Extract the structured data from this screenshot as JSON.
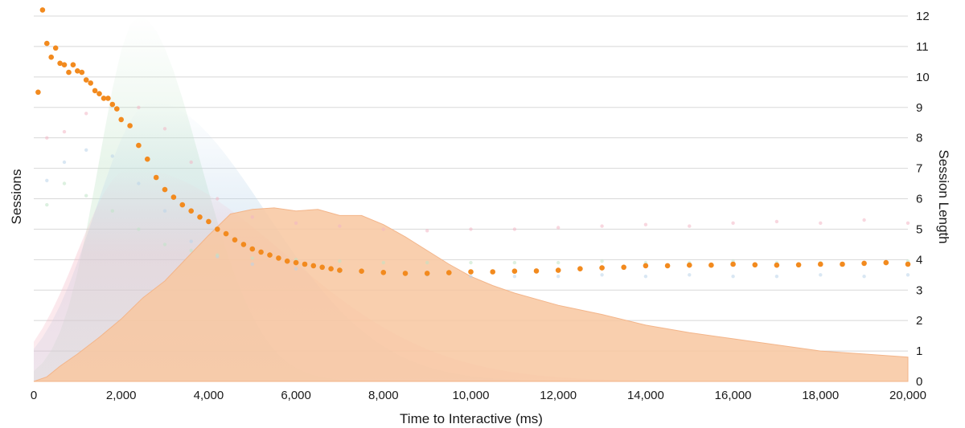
{
  "chart_data": {
    "type": "scatter",
    "title": "",
    "xlabel": "Time to Interactive (ms)",
    "ylabel_left": "Sessions",
    "ylabel_right": "Session Length",
    "xlim": [
      0,
      20000
    ],
    "ylim_right": [
      0,
      12
    ],
    "x_ticks": [
      "0",
      "2,000",
      "4,000",
      "6,000",
      "8,000",
      "10,000",
      "12,000",
      "14,000",
      "16,000",
      "18,000",
      "20,000"
    ],
    "y_ticks_right": [
      "0",
      "1",
      "2",
      "3",
      "4",
      "5",
      "6",
      "7",
      "8",
      "9",
      "10",
      "11",
      "12"
    ],
    "grid": true,
    "colors": {
      "highlight_points": "#f28a1e",
      "highlight_area_fill": "#f8c7a0",
      "highlight_area_stroke": "#f3b58a",
      "faded_pink": "#f3b6c4",
      "faded_blue": "#b9d4ea",
      "faded_green": "#bfe3c6",
      "grid": "#d8d8d8"
    },
    "highlighted_series": {
      "session_length_points": {
        "x": [
          100,
          200,
          300,
          400,
          500,
          600,
          700,
          800,
          900,
          1000,
          1100,
          1200,
          1300,
          1400,
          1500,
          1600,
          1700,
          1800,
          1900,
          2000,
          2200,
          2400,
          2600,
          2800,
          3000,
          3200,
          3400,
          3600,
          3800,
          4000,
          4200,
          4400,
          4600,
          4800,
          5000,
          5200,
          5400,
          5600,
          5800,
          6000,
          6200,
          6400,
          6600,
          6800,
          7000,
          7500,
          8000,
          8500,
          9000,
          9500,
          10000,
          10500,
          11000,
          11500,
          12000,
          12500,
          13000,
          13500,
          14000,
          14500,
          15000,
          15500,
          16000,
          16500,
          17000,
          17500,
          18000,
          18500,
          19000,
          19500,
          20000
        ],
        "y": [
          9.5,
          12.2,
          11.1,
          10.65,
          10.95,
          10.45,
          10.4,
          10.15,
          10.4,
          10.2,
          10.15,
          9.9,
          9.8,
          9.55,
          9.45,
          9.3,
          9.3,
          9.1,
          8.95,
          8.6,
          8.4,
          7.75,
          7.3,
          6.7,
          6.3,
          6.05,
          5.8,
          5.6,
          5.4,
          5.25,
          5.0,
          4.85,
          4.65,
          4.5,
          4.35,
          4.25,
          4.15,
          4.05,
          3.95,
          3.9,
          3.85,
          3.8,
          3.75,
          3.7,
          3.65,
          3.62,
          3.58,
          3.55,
          3.55,
          3.57,
          3.6,
          3.6,
          3.62,
          3.63,
          3.65,
          3.7,
          3.73,
          3.75,
          3.8,
          3.8,
          3.82,
          3.82,
          3.85,
          3.83,
          3.82,
          3.83,
          3.85,
          3.85,
          3.88,
          3.9,
          3.85
        ]
      },
      "session_count_area": {
        "x": [
          0,
          300,
          600,
          1000,
          1500,
          2000,
          2500,
          3000,
          3500,
          4000,
          4500,
          5000,
          5500,
          6000,
          6500,
          7000,
          7500,
          8000,
          8500,
          9000,
          9500,
          10000,
          10500,
          11000,
          12000,
          13000,
          14000,
          15000,
          16000,
          17000,
          18000,
          19000,
          20000
        ],
        "y": [
          0.0,
          0.15,
          0.5,
          0.9,
          1.45,
          2.05,
          2.75,
          3.3,
          4.05,
          4.8,
          5.5,
          5.65,
          5.7,
          5.6,
          5.65,
          5.45,
          5.45,
          5.15,
          4.75,
          4.3,
          3.85,
          3.45,
          3.15,
          2.9,
          2.5,
          2.2,
          1.85,
          1.6,
          1.4,
          1.2,
          1.0,
          0.9,
          0.8
        ]
      }
    },
    "faded_series": [
      {
        "color": "pink",
        "x": [
          300,
          700,
          1200,
          1800,
          2400,
          3000,
          3600,
          4200,
          5000,
          6000,
          7000,
          8000,
          9000,
          10000,
          11000,
          12000,
          13000,
          14000,
          15000,
          16000,
          17000,
          18000,
          19000,
          20000
        ],
        "y": [
          8.0,
          8.2,
          8.8,
          9.1,
          9.0,
          8.3,
          7.2,
          6.0,
          5.4,
          5.2,
          5.1,
          5.0,
          4.95,
          5.0,
          5.0,
          5.05,
          5.1,
          5.15,
          5.1,
          5.2,
          5.25,
          5.2,
          5.3,
          5.2
        ]
      },
      {
        "color": "blue",
        "x": [
          300,
          700,
          1200,
          1800,
          2400,
          3000,
          3600,
          4200,
          5000,
          6000,
          7000,
          8000,
          9000,
          10000,
          11000,
          12000,
          13000,
          14000,
          15000,
          16000,
          17000,
          18000,
          19000,
          20000
        ],
        "y": [
          6.6,
          7.2,
          7.6,
          7.4,
          6.5,
          5.6,
          4.6,
          4.1,
          3.85,
          3.7,
          3.6,
          3.55,
          3.5,
          3.45,
          3.45,
          3.45,
          3.5,
          3.45,
          3.5,
          3.45,
          3.45,
          3.5,
          3.45,
          3.5
        ]
      },
      {
        "color": "green",
        "x": [
          300,
          700,
          1200,
          1800,
          2400,
          3000,
          3600,
          4200,
          5000,
          6000,
          7000,
          8000,
          9000,
          10000,
          11000,
          12000,
          13000,
          14000,
          15000,
          16000,
          17000,
          18000,
          19000,
          20000
        ],
        "y": [
          5.8,
          6.5,
          6.1,
          5.6,
          5.0,
          4.5,
          4.3,
          4.15,
          4.05,
          4.0,
          3.95,
          3.9,
          3.9,
          3.9,
          3.9,
          3.9,
          3.95,
          3.9,
          3.9,
          3.95,
          3.9,
          3.9,
          3.9,
          3.95
        ]
      }
    ]
  }
}
